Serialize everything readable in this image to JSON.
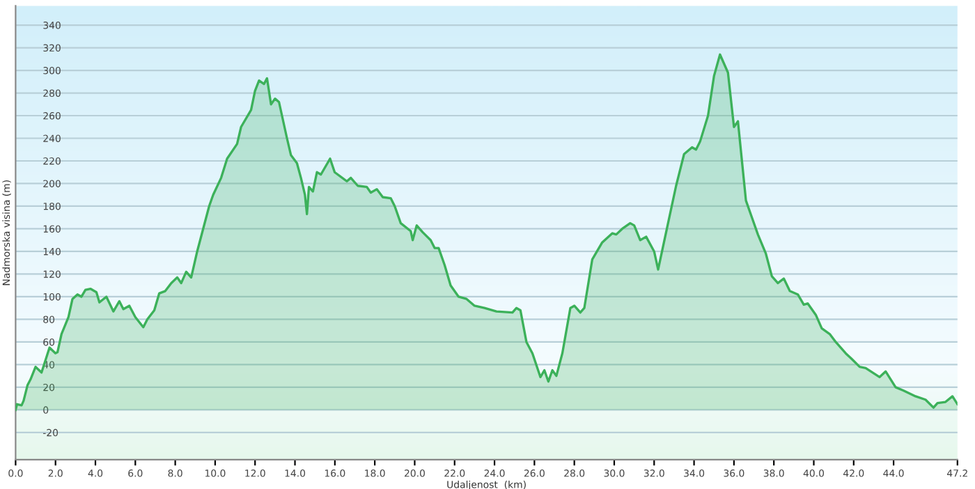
{
  "chart_data": {
    "type": "area",
    "xlabel": "Udaljenost  (km)",
    "ylabel": "Nadmorska visina (m)",
    "color": "#3cb15a",
    "grid": "y",
    "x": [
      0,
      0.07,
      0.3,
      0.4,
      0.6,
      0.75,
      1.0,
      1.3,
      1.7,
      2.0,
      2.1,
      2.3,
      2.65,
      2.85,
      3.1,
      3.3,
      3.5,
      3.75,
      4.05,
      4.2,
      4.55,
      4.9,
      5.2,
      5.4,
      5.7,
      6.0,
      6.4,
      6.6,
      6.95,
      7.2,
      7.5,
      7.8,
      8.1,
      8.3,
      8.55,
      8.8,
      9.1,
      9.7,
      9.9,
      10.3,
      10.6,
      11.1,
      11.3,
      11.8,
      12.0,
      12.2,
      12.45,
      12.6,
      12.8,
      13.0,
      13.2,
      13.6,
      13.8,
      14.1,
      14.3,
      14.5,
      14.6,
      14.7,
      14.9,
      15.1,
      15.3,
      15.76,
      15.99,
      16.6,
      16.8,
      17.15,
      17.6,
      17.8,
      18.1,
      18.4,
      18.8,
      19.0,
      19.3,
      19.8,
      19.9,
      20.1,
      20.4,
      20.8,
      21.0,
      21.2,
      21.5,
      21.8,
      22.2,
      22.6,
      23.0,
      23.5,
      24.1,
      24.9,
      25.1,
      25.3,
      25.6,
      25.9,
      26.3,
      26.5,
      26.7,
      26.9,
      27.1,
      27.4,
      27.8,
      28.0,
      28.3,
      28.5,
      28.9,
      29.4,
      29.9,
      30.1,
      30.4,
      30.8,
      31.0,
      31.3,
      31.6,
      32.0,
      32.2,
      32.6,
      33.1,
      33.5,
      33.9,
      34.1,
      34.3,
      34.7,
      35.0,
      35.3,
      35.7,
      36.0,
      36.2,
      36.4,
      36.6,
      36.9,
      37.2,
      37.6,
      37.9,
      38.2,
      38.5,
      38.8,
      39.2,
      39.5,
      39.7,
      40.1,
      40.4,
      40.8,
      41.1,
      41.6,
      41.9,
      42.3,
      42.6,
      43.3,
      43.6,
      44.1,
      44.5,
      45.1,
      45.6,
      46.0,
      46.2,
      46.6,
      46.95,
      47.2
    ],
    "values": [
      0,
      5,
      4,
      8,
      22,
      27,
      38,
      33,
      55,
      50,
      51,
      67,
      82,
      98,
      102,
      100,
      106,
      107,
      104,
      95,
      100,
      87,
      96,
      89,
      92,
      82,
      73,
      80,
      88,
      103,
      105,
      112,
      117,
      112,
      122,
      117,
      140,
      180,
      190,
      205,
      222,
      235,
      250,
      265,
      282,
      291,
      288,
      293,
      270,
      275,
      272,
      240,
      225,
      218,
      205,
      190,
      173,
      197,
      193,
      210,
      208,
      222,
      210,
      202,
      205,
      198,
      197,
      192,
      195,
      188,
      187,
      180,
      165,
      158,
      150,
      163,
      157,
      150,
      143,
      143,
      128,
      110,
      100,
      98,
      92,
      90,
      87,
      86,
      90,
      88,
      60,
      50,
      29,
      35,
      25,
      35,
      30,
      50,
      90,
      92,
      86,
      90,
      133,
      148,
      156,
      155,
      160,
      165,
      163,
      150,
      153,
      140,
      124,
      157,
      198,
      226,
      232,
      230,
      237,
      260,
      295,
      314,
      298,
      250,
      255,
      220,
      185,
      170,
      155,
      138,
      118,
      112,
      116,
      105,
      102,
      93,
      94,
      84,
      72,
      67,
      60,
      50,
      45,
      38,
      37,
      29,
      34,
      20,
      17,
      12,
      9,
      2,
      6,
      7,
      12,
      5
    ],
    "xlim": [
      0,
      47.2
    ],
    "ylim": [
      -44,
      357
    ],
    "xticks": [
      {
        "value": 0,
        "label": "0.0"
      },
      {
        "value": 2,
        "label": "2.0"
      },
      {
        "value": 4,
        "label": "4.0"
      },
      {
        "value": 6,
        "label": "6.0"
      },
      {
        "value": 8,
        "label": "8.0"
      },
      {
        "value": 10,
        "label": "10.0"
      },
      {
        "value": 12,
        "label": "12.0"
      },
      {
        "value": 14,
        "label": "14.0"
      },
      {
        "value": 16,
        "label": "16.0"
      },
      {
        "value": 18,
        "label": "18.0"
      },
      {
        "value": 20,
        "label": "20.0"
      },
      {
        "value": 22,
        "label": "22.0"
      },
      {
        "value": 24,
        "label": "24.0"
      },
      {
        "value": 26,
        "label": "26.0"
      },
      {
        "value": 28,
        "label": "28.0"
      },
      {
        "value": 30,
        "label": "30.0"
      },
      {
        "value": 32,
        "label": "32.0"
      },
      {
        "value": 34,
        "label": "34.0"
      },
      {
        "value": 36,
        "label": "36.0"
      },
      {
        "value": 38,
        "label": "38.0"
      },
      {
        "value": 40,
        "label": "40.0"
      },
      {
        "value": 42,
        "label": "42.0"
      },
      {
        "value": 44,
        "label": "44.0"
      },
      47.2
    ],
    "yticks": [
      -20,
      0,
      20,
      40,
      60,
      80,
      100,
      120,
      140,
      160,
      180,
      200,
      220,
      240,
      260,
      280,
      300,
      320,
      340
    ]
  }
}
